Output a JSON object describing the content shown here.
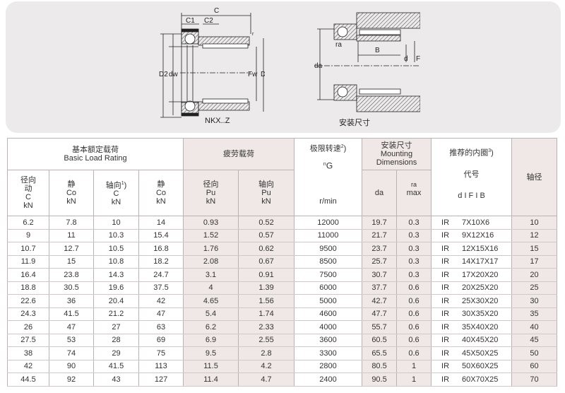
{
  "diagrams": {
    "left_caption": "NKX..Z",
    "right_caption": "安装尺寸",
    "left_labels": {
      "C": "C",
      "C1": "C1",
      "C2": "C2",
      "r": "r",
      "D2": "D2",
      "dw": "dw",
      "Fw": "Fw",
      "D": "D"
    },
    "right_labels": {
      "ra": "ra",
      "B": "B",
      "da": "da",
      "d": "d",
      "F": "F"
    }
  },
  "header": {
    "basic_load_cn": "基本额定载荷",
    "basic_load_en": "Basic Load Rating",
    "fatigue": "疲劳载荷",
    "speed_cn": "极限转速",
    "speed_note": "2",
    "speed_symbol": "n",
    "speed_sub": "G",
    "speed_unit": "r/min",
    "mount_cn": "安装尺寸",
    "mount_en1": "Mounting",
    "mount_en2": "Dimensions",
    "inner_cn": "推荐的内圈",
    "inner_note": "3",
    "code": "代号",
    "dfb": "d I F I B",
    "shaft": "轴径",
    "c_radial_1": "径向",
    "c_radial_2": "动",
    "c_radial_3": "C",
    "c_radial_4": "kN",
    "c0_static_1": "静",
    "c0_static_2": "Co",
    "c0_static_3": "kN",
    "c_axial_1": "轴向",
    "c_axial_note": "1",
    "c_axial_2": "C",
    "c_axial_3": "kN",
    "c0_axial_1": "静",
    "c0_axial_2": "Co",
    "c0_axial_3": "kN",
    "pu_radial_1": "径向",
    "pu_radial_2": "Pu",
    "pu_radial_3": "kN",
    "pu_axial_1": "轴向",
    "pu_axial_2": "Pu",
    "pu_axial_3": "kN",
    "da": "da",
    "ra_1": "ra",
    "ra_2": "max"
  },
  "rows": [
    [
      "6.2",
      "7.8",
      "10",
      "14",
      "0.93",
      "0.52",
      "12000",
      "19.7",
      "0.3",
      "IR",
      "7X10X6",
      "10"
    ],
    [
      "9",
      "11",
      "10.3",
      "15.4",
      "1.52",
      "0.57",
      "11000",
      "21.7",
      "0.3",
      "IR",
      "9X12X16",
      "12"
    ],
    [
      "10.7",
      "12.7",
      "10.5",
      "16.8",
      "1.76",
      "0.62",
      "9500",
      "23.7",
      "0.3",
      "IR",
      "12X15X16",
      "15"
    ],
    [
      "11.9",
      "15",
      "10.8",
      "18.2",
      "2.08",
      "0.67",
      "8500",
      "25.7",
      "0.3",
      "IR",
      "14X17X17",
      "17"
    ],
    [
      "16.4",
      "23.8",
      "14.3",
      "24.7",
      "3.1",
      "0.91",
      "7500",
      "30.7",
      "0.3",
      "IR",
      "17X20X20",
      "20"
    ],
    [
      "18.8",
      "30.5",
      "19.6",
      "37.5",
      "4",
      "1.39",
      "6000",
      "37.7",
      "0.6",
      "IR",
      "20X25X20",
      "25"
    ],
    [
      "22.6",
      "36",
      "20.4",
      "42",
      "4.65",
      "1.56",
      "5000",
      "42.7",
      "0.6",
      "IR",
      "25X30X20",
      "30"
    ],
    [
      "24.3",
      "41.5",
      "21.2",
      "47",
      "5.4",
      "1.74",
      "4600",
      "47.7",
      "0.6",
      "IR",
      "30X35X20",
      "35"
    ],
    [
      "26",
      "47",
      "27",
      "63",
      "6.2",
      "2.33",
      "4000",
      "55.7",
      "0.6",
      "IR",
      "35X40X20",
      "40"
    ],
    [
      "27.5",
      "53",
      "28",
      "69",
      "6.9",
      "2.55",
      "3600",
      "60.5",
      "0.6",
      "IR",
      "40X45X20",
      "45"
    ],
    [
      "38",
      "74",
      "29",
      "75",
      "9.5",
      "2.8",
      "3300",
      "65.5",
      "0.6",
      "IR",
      "45X50X25",
      "50"
    ],
    [
      "42",
      "90",
      "41.5",
      "113",
      "11.5",
      "4.2",
      "2800",
      "80.5",
      "1",
      "IR",
      "50X60X25",
      "60"
    ],
    [
      "44.5",
      "92",
      "43",
      "127",
      "11.4",
      "4.7",
      "2400",
      "90.5",
      "1",
      "IR",
      "60X70X25",
      "70"
    ]
  ],
  "colors": {
    "shade": "#efe8e6",
    "panel": "#eceaea",
    "border": "#b9b3b3"
  }
}
